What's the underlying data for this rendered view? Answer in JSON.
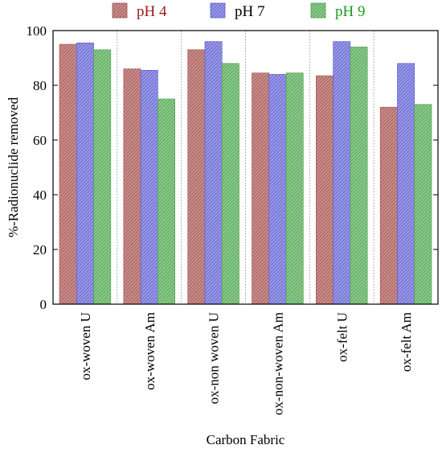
{
  "chart_data": {
    "type": "bar",
    "title": "",
    "xlabel": "Carbon Fabric",
    "ylabel": "%-Radionuclide removed",
    "ylim": [
      0,
      100
    ],
    "yticks": [
      0,
      20,
      40,
      60,
      80,
      100
    ],
    "grid": "vertical dotted separators between categories",
    "legend_position": "top",
    "categories": [
      "ox-woven U",
      "ox-woven Am",
      "ox-non woven U",
      "ox-non-woven  Am",
      "ox-felt U",
      "ox-felt Am"
    ],
    "series": [
      {
        "name": "pH 4",
        "color": "#a0504d",
        "hatch": "#c8908d",
        "text_color": "#9b1b1b",
        "values": [
          95,
          86,
          93,
          84.5,
          83.5,
          72
        ]
      },
      {
        "name": "pH 7",
        "color": "#5a5acc",
        "hatch": "#9a9ae6",
        "text_color": "#000000",
        "values": [
          95.5,
          85.5,
          96,
          84,
          96,
          88
        ]
      },
      {
        "name": "pH 9",
        "color": "#4e9a50",
        "hatch": "#8ccb8c",
        "text_color": "#1d9a1d",
        "values": [
          93,
          75,
          88,
          84.5,
          94,
          73
        ]
      }
    ]
  }
}
